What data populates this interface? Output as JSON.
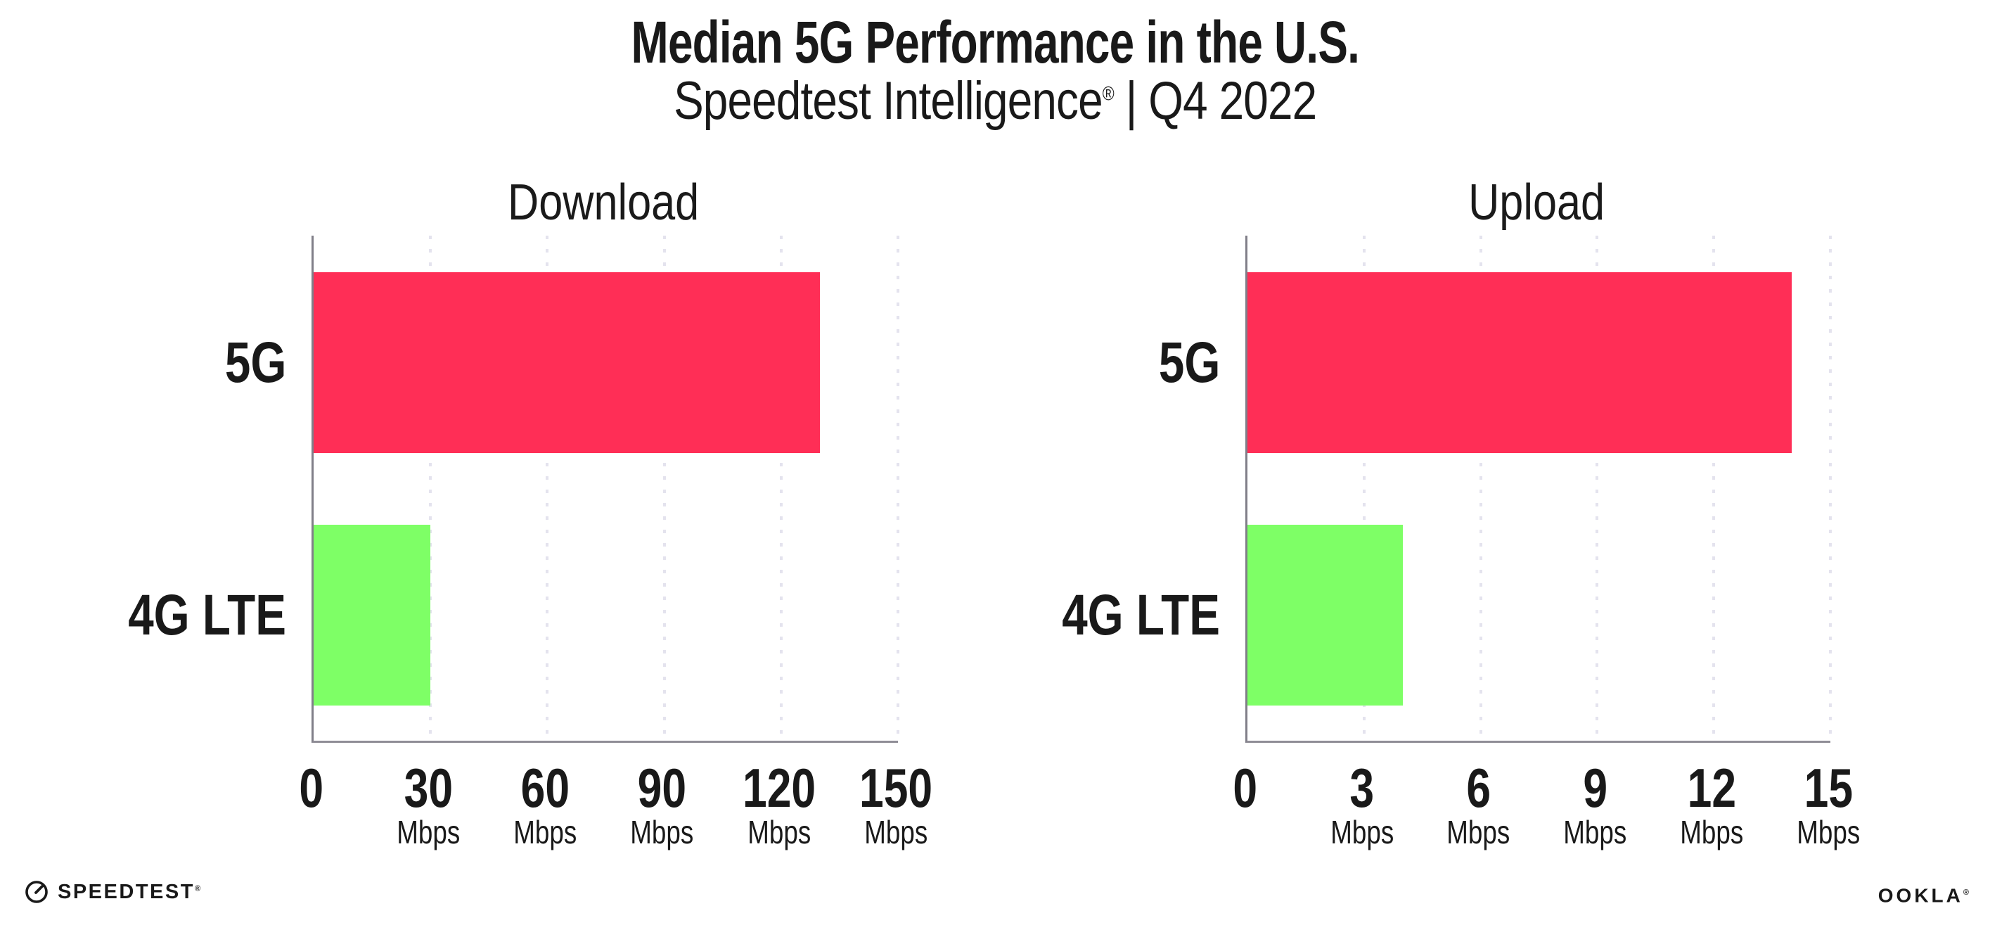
{
  "header": {
    "title": "Median 5G Performance in the U.S.",
    "subtitle": {
      "product": "Speedtest Intelligence",
      "registered_mark": "®",
      "separator": "|",
      "period": "Q4 2022"
    }
  },
  "chart_data": [
    {
      "type": "bar",
      "orientation": "horizontal",
      "title": "Download",
      "categories": [
        "5G",
        "4G LTE"
      ],
      "values": [
        130,
        30
      ],
      "unit": "Mbps",
      "xlim": [
        0,
        150
      ],
      "xticks": [
        0,
        30,
        60,
        90,
        120,
        150
      ],
      "tick_unit_label": "Mbps",
      "bar_colors": [
        "#FF2E56",
        "#7EFF66"
      ],
      "grid": "vertical-dotted",
      "legend": "none"
    },
    {
      "type": "bar",
      "orientation": "horizontal",
      "title": "Upload",
      "categories": [
        "5G",
        "4G LTE"
      ],
      "values": [
        14,
        4
      ],
      "unit": "Mbps",
      "xlim": [
        0,
        15
      ],
      "xticks": [
        0,
        3,
        6,
        9,
        12,
        15
      ],
      "tick_unit_label": "Mbps",
      "bar_colors": [
        "#FF2E56",
        "#7EFF66"
      ],
      "grid": "vertical-dotted",
      "legend": "none"
    }
  ],
  "footer": {
    "speedtest_wordmark": "SPEEDTEST",
    "speedtest_mark": "®",
    "ookla_wordmark": "OOKLA",
    "ookla_mark": "®"
  },
  "colors": {
    "background": "#FFFFFF",
    "text": "#191919",
    "axis": "#807E88",
    "gridline": "#E4E3EE",
    "bar_5g": "#FF2E56",
    "bar_4g_lte": "#7EFF66"
  }
}
